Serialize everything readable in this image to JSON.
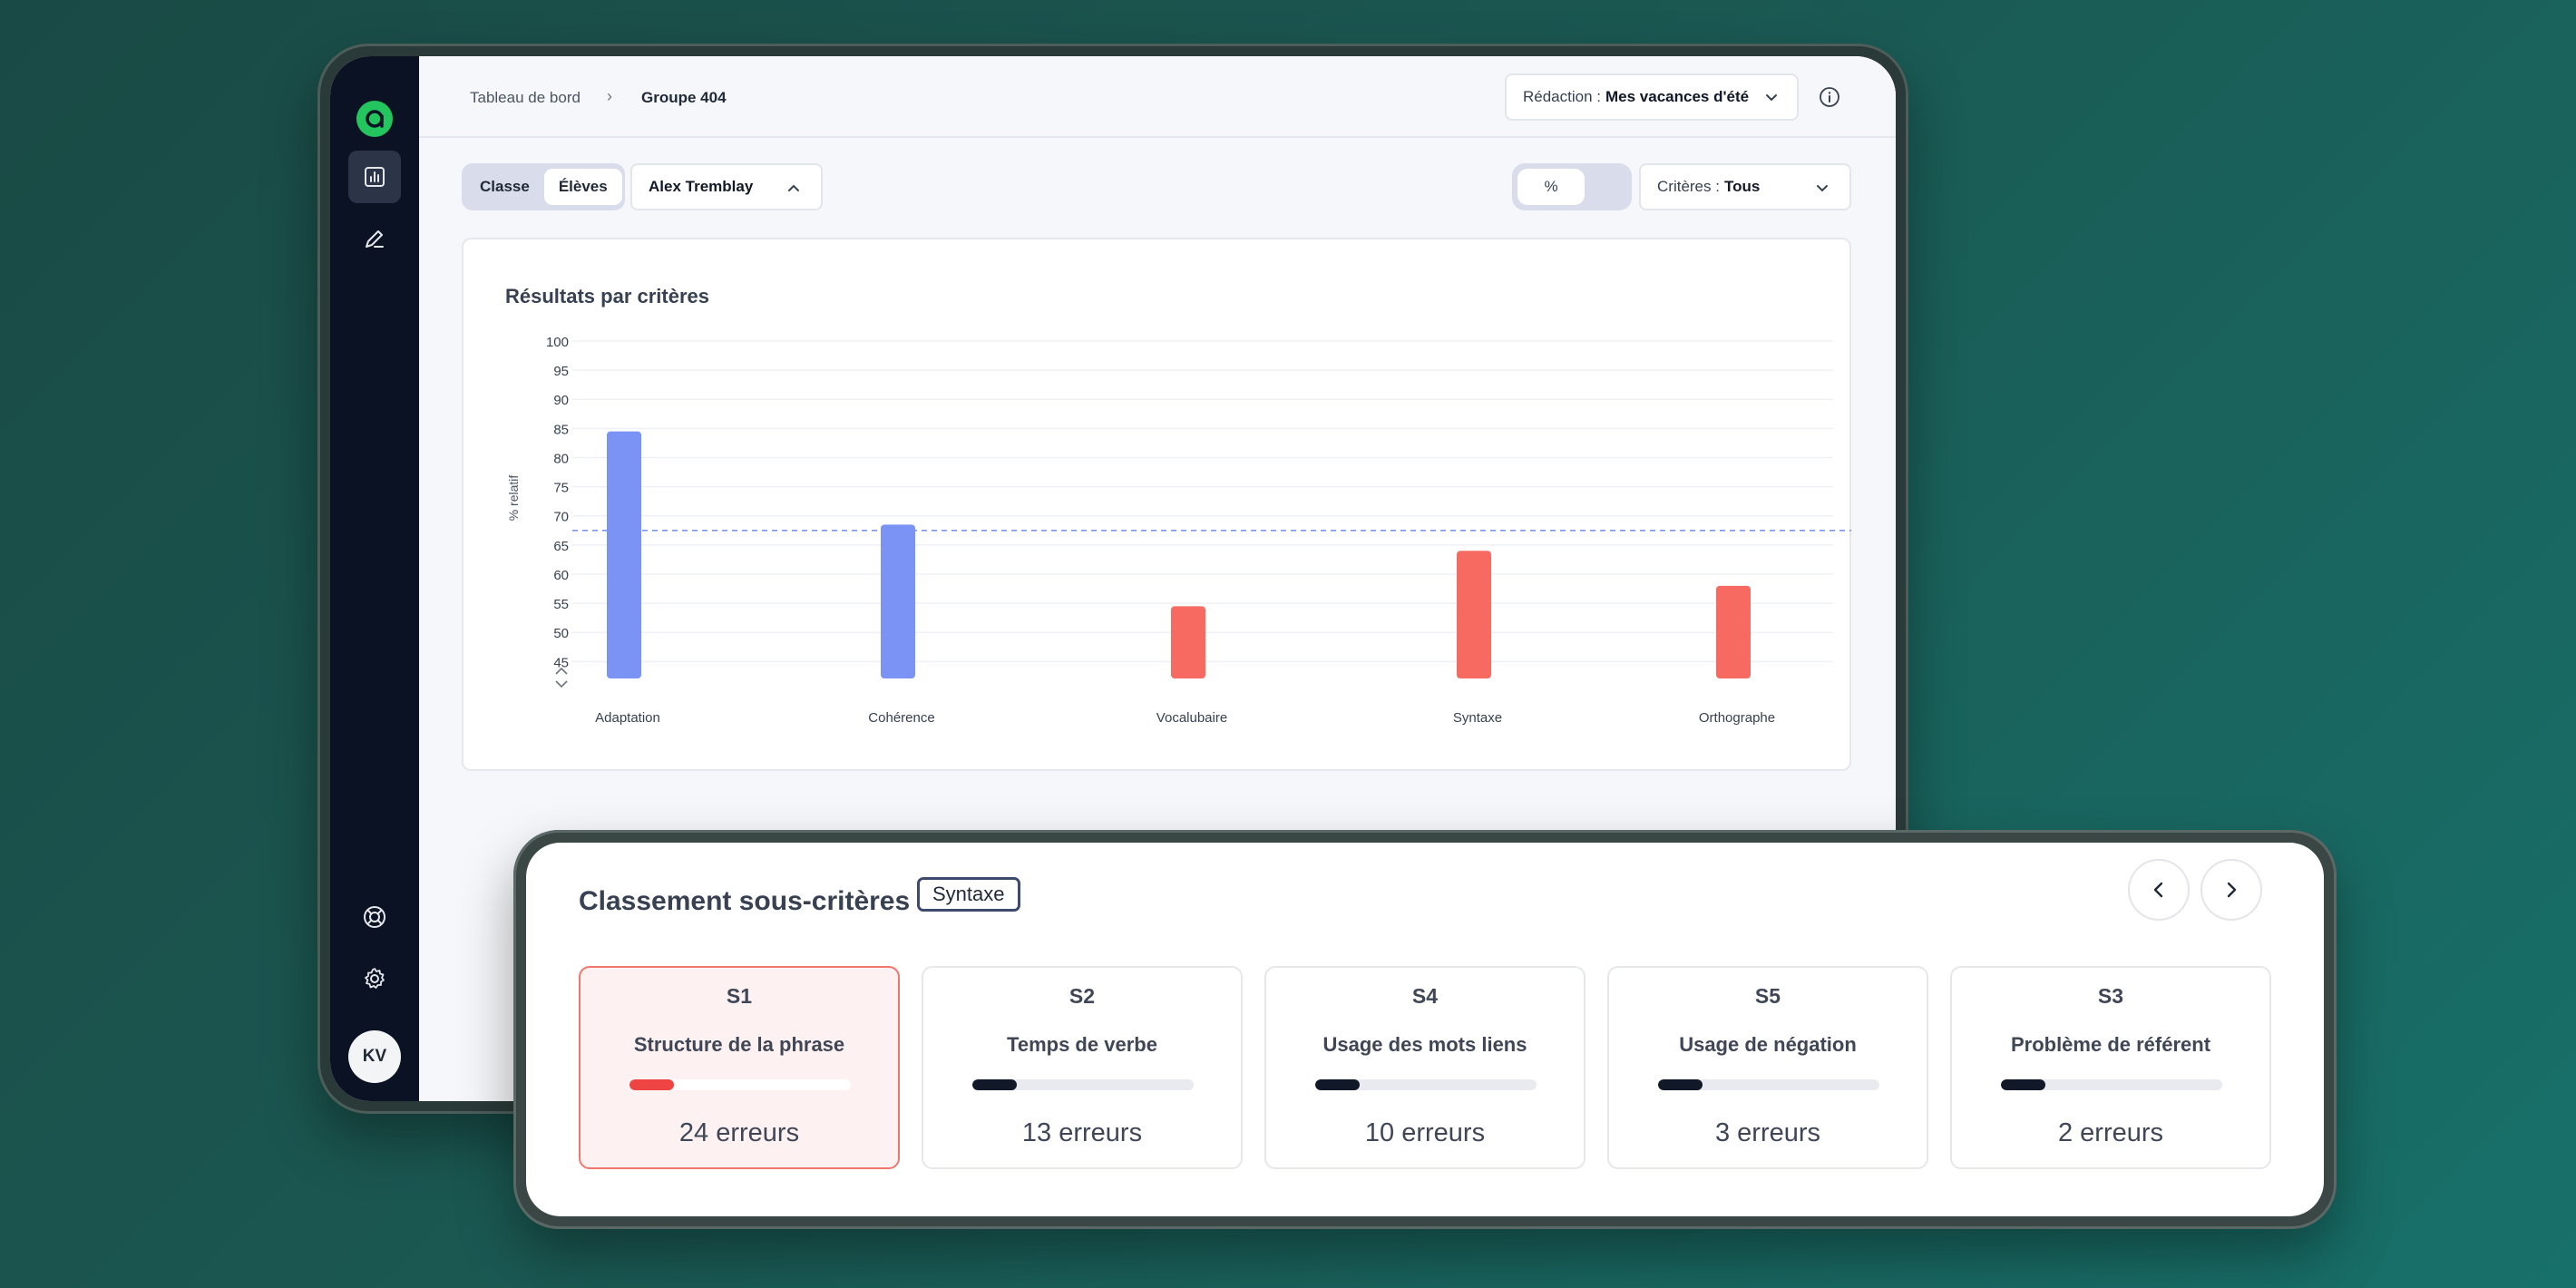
{
  "header": {
    "breadcrumb": [
      "Tableau de bord",
      "Groupe 404"
    ],
    "redaction_label": "Rédaction :",
    "redaction_value": "Mes vacances d'été"
  },
  "sidebar": {
    "items": [
      {
        "icon": "bar-chart-icon",
        "active": true
      },
      {
        "icon": "pen-icon",
        "active": false
      },
      {
        "icon": "lifebuoy-icon",
        "active": false
      },
      {
        "icon": "gear-icon",
        "active": false
      }
    ],
    "avatar": "KV"
  },
  "toolbar": {
    "segment": [
      "Classe",
      "Élèves"
    ],
    "student": "Alex Tremblay",
    "toggle_label": "%",
    "criteres_label": "Critères :",
    "criteres_value": "Tous"
  },
  "chart_data": {
    "type": "bar",
    "title": "Résultats par critères",
    "ylabel": "% relatif",
    "ylim": [
      40,
      100
    ],
    "yticks": [
      100,
      95,
      90,
      85,
      80,
      75,
      70,
      65,
      60,
      55,
      50,
      45
    ],
    "categories": [
      "Adaptation",
      "Cohérence",
      "Vocalubaire",
      "Syntaxe",
      "Orthographe"
    ],
    "values": [
      84.5,
      68.5,
      54.5,
      64,
      58
    ],
    "colors": [
      "#7c93f6",
      "#7c93f6",
      "#f76a62",
      "#f76a62",
      "#f76a62"
    ],
    "reference_line": 67.5,
    "axis_break": true,
    "grid": true
  },
  "ranking": {
    "title": "Classement sous-critères",
    "badge": "Syntaxe",
    "cards": [
      {
        "code": "S1",
        "name": "Structure de la phrase",
        "count": "24 erreurs",
        "fill": 0.2
      },
      {
        "code": "S2",
        "name": "Temps de verbe",
        "count": "13 erreurs",
        "fill": 0.2
      },
      {
        "code": "S4",
        "name": "Usage des mots liens",
        "count": "10 erreurs",
        "fill": 0.2
      },
      {
        "code": "S5",
        "name": "Usage de négation",
        "count": "3 erreurs",
        "fill": 0.2
      },
      {
        "code": "S3",
        "name": "Problème de référent",
        "count": "2 erreurs",
        "fill": 0.2
      }
    ]
  },
  "colors": {
    "sidebar_bg": "#0b1223",
    "accent_green": "#22c55e",
    "bar_blue": "#7c93f6",
    "bar_red": "#f76a62",
    "error_red": "#ef4444"
  }
}
